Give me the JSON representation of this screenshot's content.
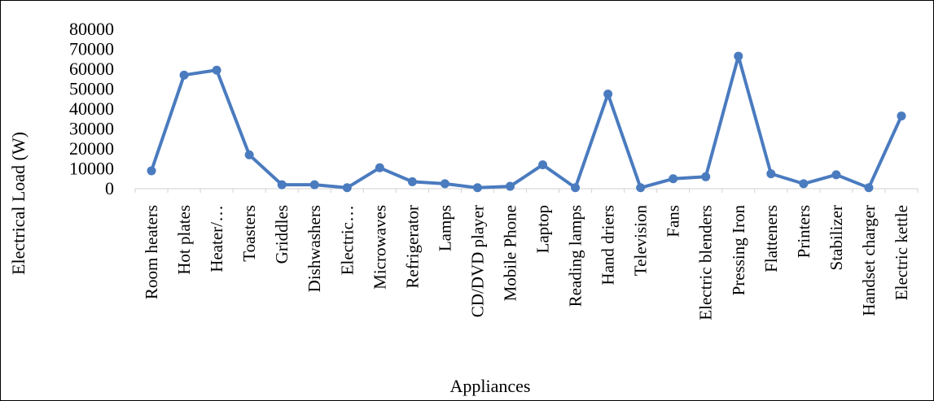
{
  "chart_data": {
    "type": "line",
    "xlabel": "Appliances",
    "ylabel": "Electrical  Load (W)",
    "ylim": [
      0,
      80000
    ],
    "yticks": [
      "0",
      "10000",
      "20000",
      "30000",
      "40000",
      "50000",
      "60000",
      "70000",
      "80000"
    ],
    "grid": false,
    "legend": "none",
    "categories": [
      "Room heaters",
      "Hot plates",
      "Heater/…",
      "Toasters",
      "Griddles",
      "Dishwashers",
      "Electric…",
      "Microwaves",
      "Refrigerator",
      "Lamps",
      "CD/DVD player",
      "Mobile Phone",
      "Laptop",
      "Reading lamps",
      "Hand driers",
      "Television",
      "Fans",
      "Electric blenders",
      "Pressing Iron",
      "Flatteners",
      "Printers",
      "Stabilizer",
      "Handset  charger",
      "Electric kettle"
    ],
    "series": [
      {
        "values": [
          9000,
          57000,
          59500,
          17000,
          2000,
          2000,
          500,
          10500,
          3500,
          2500,
          500,
          1200,
          12000,
          500,
          47500,
          500,
          5000,
          6000,
          66500,
          7500,
          2500,
          7000,
          500,
          36500
        ],
        "color": "#4a7bbf"
      }
    ]
  }
}
